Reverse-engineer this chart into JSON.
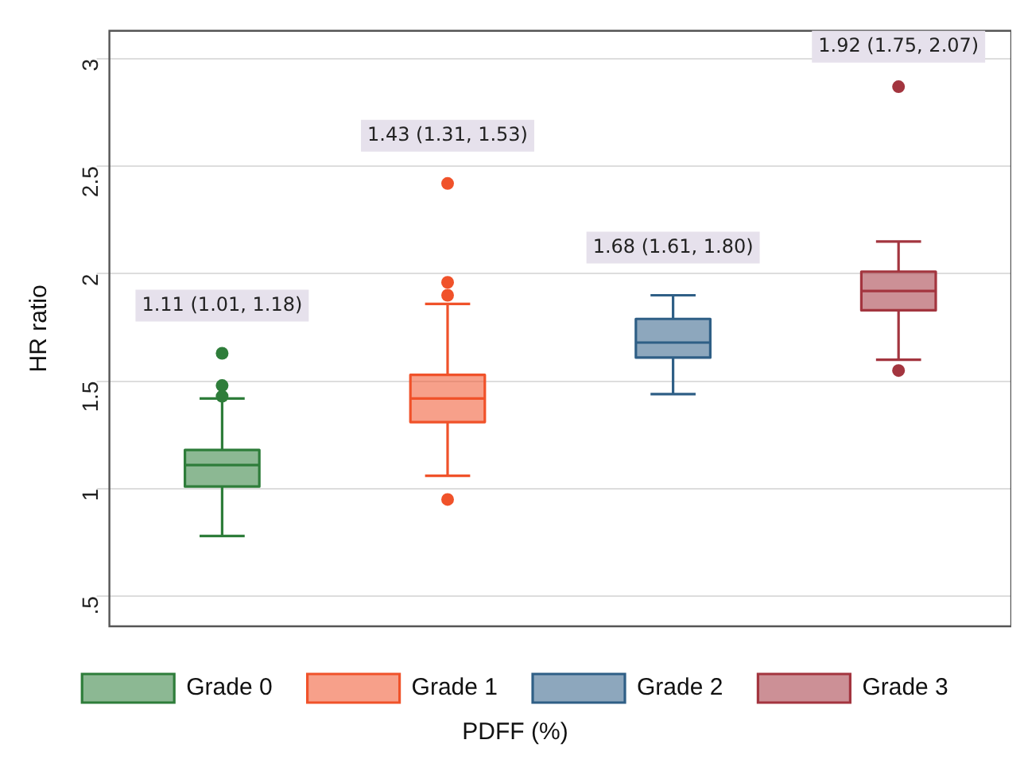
{
  "chart_data": {
    "type": "box",
    "xlabel": "PDFF (%)",
    "ylabel": "HR ratio",
    "categories": [
      null,
      null,
      null,
      null
    ],
    "series": [
      {
        "name": "Grade 0",
        "color": "#2e7d3a",
        "boxes": [
          {
            "low": 0.78,
            "q1": 1.01,
            "median": 1.11,
            "q3": 1.18,
            "high": 1.42,
            "outliers": [
              1.63,
              1.48,
              1.43
            ]
          },
          null,
          null,
          null
        ]
      },
      {
        "name": "Grade 1",
        "color": "#f0522a",
        "boxes": [
          null,
          {
            "low": 1.06,
            "q1": 1.31,
            "median": 1.42,
            "q3": 1.53,
            "high": 1.86,
            "outliers": [
              2.42,
              1.96,
              1.9,
              0.95
            ]
          },
          null,
          null
        ]
      },
      {
        "name": "Grade 2",
        "color": "#2f5f86",
        "boxes": [
          null,
          null,
          {
            "low": 1.44,
            "q1": 1.61,
            "median": 1.68,
            "q3": 1.79,
            "high": 1.9
          },
          null
        ]
      },
      {
        "name": "Grade 3",
        "color": "#a3353f",
        "boxes": [
          null,
          null,
          null,
          {
            "low": 1.6,
            "q1": 1.83,
            "median": 1.92,
            "q3": 2.01,
            "high": 2.15,
            "outliers": [
              2.87,
              1.55
            ]
          }
        ]
      }
    ],
    "annotations": [
      "1.11 (1.01, 1.18)",
      "1.43 (1.31, 1.53)",
      "1.68 (1.61, 1.80)",
      "1.92 (1.75, 2.07)"
    ],
    "ylim": [
      0.36,
      3.13
    ],
    "yticks": [
      {
        "value": 0.5,
        "label": ".5"
      },
      1,
      1.5,
      2,
      2.5,
      3
    ],
    "grid": "y",
    "legend": "bottom"
  }
}
